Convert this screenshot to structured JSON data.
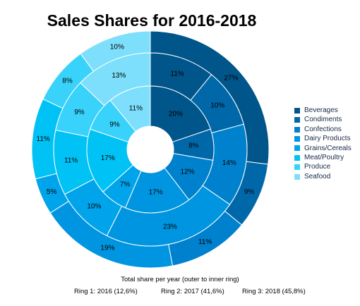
{
  "chart_data": {
    "type": "pie",
    "subtype": "multi-level donut",
    "title": "Sales Shares for 2016-2018",
    "categories": [
      "Beverages",
      "Condiments",
      "Confections",
      "Dairy Products",
      "Grains/Cereals",
      "Meat/Poultry",
      "Produce",
      "Seafood"
    ],
    "colors": [
      "#00558a",
      "#0068a8",
      "#0081ce",
      "#0095e0",
      "#00a4ea",
      "#00c2f5",
      "#38d2fa",
      "#7ddffb"
    ],
    "series": [
      {
        "ring": "outer",
        "values": [
          27,
          9,
          11,
          19,
          5,
          11,
          8,
          10
        ],
        "labels": [
          "27%",
          "9%",
          "11%",
          "19%",
          "5%",
          "11%",
          "8%",
          "10%"
        ]
      },
      {
        "ring": "middle",
        "values": [
          11,
          10,
          14,
          23,
          10,
          11,
          9,
          13
        ],
        "labels": [
          "11%",
          "10%",
          "14%",
          "23%",
          "10%",
          "11%",
          "9%",
          "13%"
        ]
      },
      {
        "ring": "inner",
        "values": [
          20,
          8,
          12,
          17,
          7,
          17,
          9,
          11
        ],
        "labels": [
          "20%",
          "8%",
          "12%",
          "17%",
          "7%",
          "17%",
          "9%",
          "11%"
        ]
      }
    ],
    "legend": {
      "position": "right"
    },
    "caption": "Total share per year (outer to inner ring)",
    "rings": [
      "Ring 1: 2016 (12,6%)",
      "Ring 2: 2017 (41,6%)",
      "Ring 3: 2018 (45,8%)"
    ]
  }
}
